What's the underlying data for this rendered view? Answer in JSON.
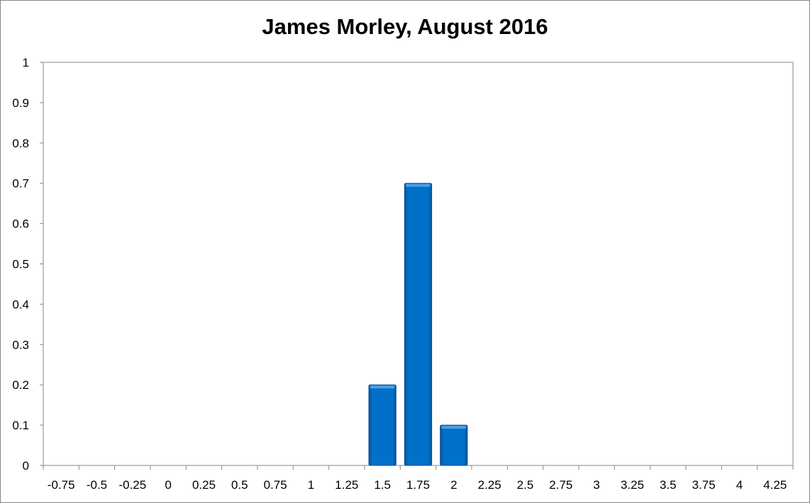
{
  "chart_data": {
    "type": "bar",
    "title": "James Morley, August 2016",
    "xlabel": "",
    "ylabel": "",
    "categories": [
      "-0.75",
      "-0.5",
      "-0.25",
      "0",
      "0.25",
      "0.5",
      "0.75",
      "1",
      "1.25",
      "1.5",
      "1.75",
      "2",
      "2.25",
      "2.5",
      "2.75",
      "3",
      "3.25",
      "3.5",
      "3.75",
      "4",
      "4.25"
    ],
    "values": [
      0,
      0,
      0,
      0,
      0,
      0,
      0,
      0,
      0,
      0.2,
      0.7,
      0.1,
      0,
      0,
      0,
      0,
      0,
      0,
      0,
      0,
      0
    ],
    "yticks": [
      "0",
      "0.1",
      "0.2",
      "0.3",
      "0.4",
      "0.5",
      "0.6",
      "0.7",
      "0.8",
      "0.9",
      "1"
    ],
    "ylim": [
      0,
      1
    ],
    "grid": false,
    "legend": "none",
    "bar_color": "#0070C8"
  }
}
